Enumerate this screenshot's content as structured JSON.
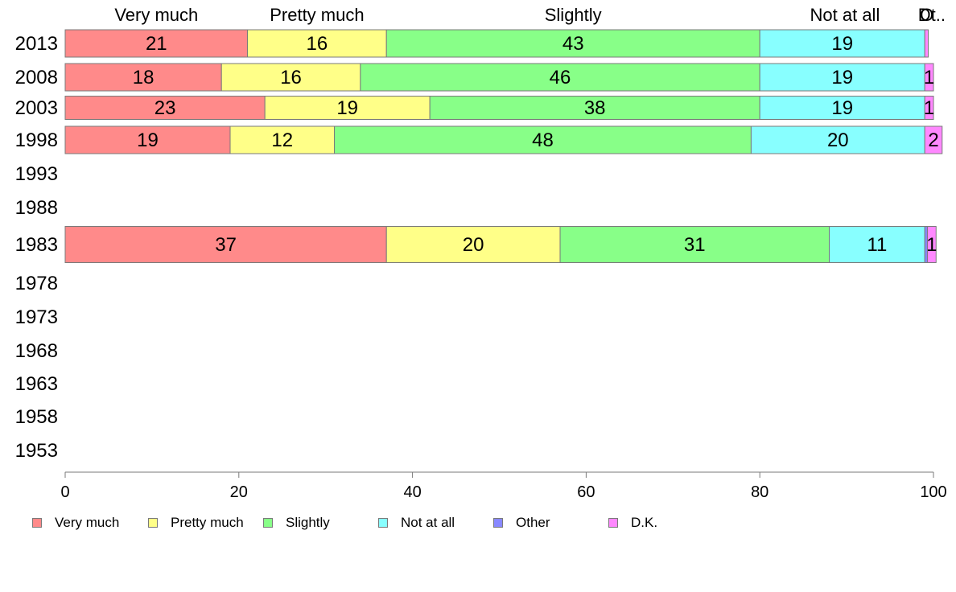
{
  "chart_data": {
    "type": "bar",
    "orientation": "horizontal",
    "stacked": true,
    "title": "",
    "xlabel": "",
    "ylabel": "",
    "xlim": [
      0,
      100
    ],
    "x_ticks": [
      "0",
      "20",
      "40",
      "60",
      "80",
      "100"
    ],
    "categories": [
      "2013",
      "2008",
      "2003",
      "1998",
      "1993",
      "1988",
      "1983",
      "1978",
      "1973",
      "1968",
      "1963",
      "1958",
      "1953"
    ],
    "top_labels": [
      "Very much",
      "Pretty much",
      "Slightly",
      "Not at all",
      "O",
      "Dt.."
    ],
    "series": [
      {
        "name": "Very much",
        "color": "#ff8a8a",
        "values": [
          21,
          18,
          23,
          19,
          null,
          null,
          37,
          null,
          null,
          null,
          null,
          null,
          null
        ],
        "labels": [
          "21",
          "18",
          "23",
          "19",
          "",
          "",
          "37",
          "",
          "",
          "",
          "",
          "",
          ""
        ]
      },
      {
        "name": "Pretty much",
        "color": "#ffff88",
        "values": [
          16,
          16,
          19,
          12,
          null,
          null,
          20,
          null,
          null,
          null,
          null,
          null,
          null
        ],
        "labels": [
          "16",
          "16",
          "19",
          "12",
          "",
          "",
          "20",
          "",
          "",
          "",
          "",
          "",
          ""
        ]
      },
      {
        "name": "Slightly",
        "color": "#88ff88",
        "values": [
          43,
          46,
          38,
          48,
          null,
          null,
          31,
          null,
          null,
          null,
          null,
          null,
          null
        ],
        "labels": [
          "43",
          "46",
          "38",
          "48",
          "",
          "",
          "31",
          "",
          "",
          "",
          "",
          "",
          ""
        ]
      },
      {
        "name": "Not at all",
        "color": "#88ffff",
        "values": [
          19,
          19,
          19,
          20,
          null,
          null,
          11,
          null,
          null,
          null,
          null,
          null,
          null
        ],
        "labels": [
          "19",
          "19",
          "19",
          "20",
          "",
          "",
          "11",
          "",
          "",
          "",
          "",
          "",
          ""
        ]
      },
      {
        "name": "Other",
        "color": "#8888ff",
        "values": [
          0,
          0,
          0,
          0,
          null,
          null,
          0.3,
          null,
          null,
          null,
          null,
          null,
          null
        ],
        "labels": [
          "",
          "",
          "",
          "",
          "",
          "",
          "",
          "",
          "",
          "",
          "",
          "",
          ""
        ]
      },
      {
        "name": "D.K.",
        "color": "#ff88ff",
        "values": [
          0.4,
          1,
          1,
          2,
          null,
          null,
          1,
          null,
          null,
          null,
          null,
          null,
          null
        ],
        "labels": [
          "",
          "1",
          "1",
          "2",
          "",
          "",
          "1",
          "",
          "",
          "",
          "",
          "",
          ""
        ]
      }
    ],
    "legend_position": "bottom-left",
    "grid": false
  }
}
